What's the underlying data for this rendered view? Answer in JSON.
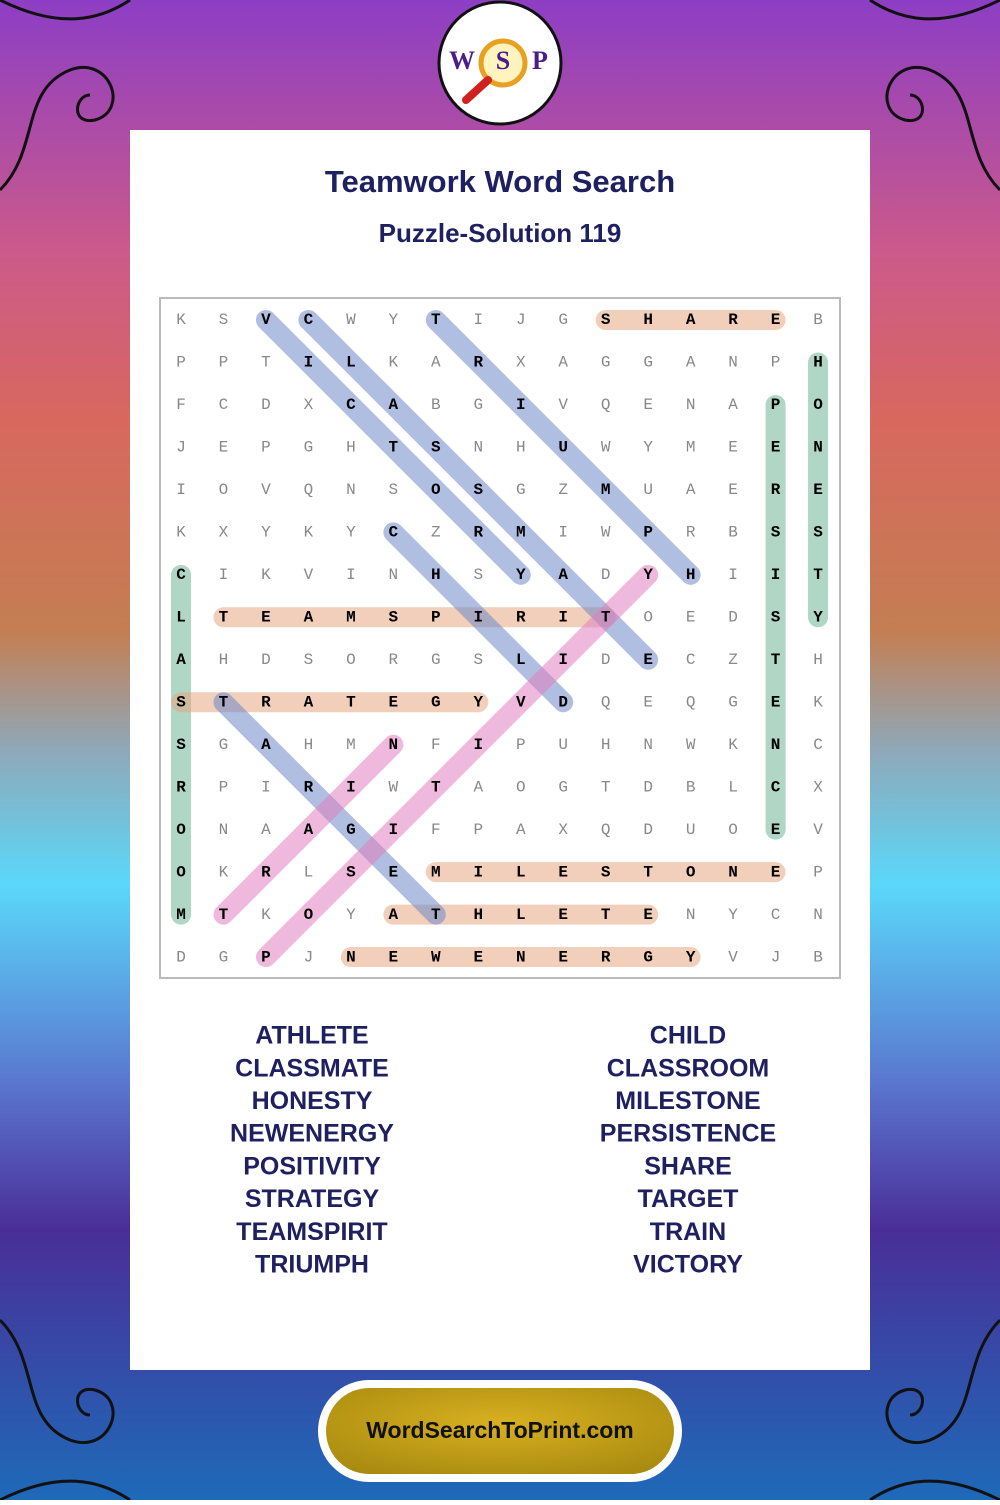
{
  "logo": {
    "letters": [
      "W",
      "S",
      "P"
    ]
  },
  "header": {
    "title": "Teamwork Word Search",
    "subtitle": "Puzzle-Solution 119"
  },
  "grid": {
    "rows": [
      [
        "K",
        "S",
        "V",
        "C",
        "W",
        "Y",
        "T",
        "I",
        "J",
        "G",
        "S",
        "H",
        "A",
        "R",
        "E",
        "B"
      ],
      [
        "P",
        "P",
        "T",
        "I",
        "L",
        "K",
        "A",
        "R",
        "X",
        "A",
        "G",
        "G",
        "A",
        "N",
        "P",
        "H"
      ],
      [
        "F",
        "C",
        "D",
        "X",
        "C",
        "A",
        "B",
        "G",
        "I",
        "V",
        "Q",
        "E",
        "N",
        "A",
        "P",
        "O"
      ],
      [
        "J",
        "E",
        "P",
        "G",
        "H",
        "T",
        "S",
        "N",
        "H",
        "U",
        "W",
        "Y",
        "M",
        "E",
        "E",
        "N"
      ],
      [
        "I",
        "O",
        "V",
        "Q",
        "N",
        "S",
        "O",
        "S",
        "G",
        "Z",
        "M",
        "U",
        "A",
        "E",
        "R",
        "E"
      ],
      [
        "K",
        "X",
        "Y",
        "K",
        "Y",
        "C",
        "Z",
        "R",
        "M",
        "I",
        "W",
        "P",
        "R",
        "B",
        "S",
        "S"
      ],
      [
        "C",
        "I",
        "K",
        "V",
        "I",
        "N",
        "H",
        "S",
        "Y",
        "A",
        "D",
        "Y",
        "H",
        "I",
        "I",
        "T"
      ],
      [
        "L",
        "T",
        "E",
        "A",
        "M",
        "S",
        "P",
        "I",
        "R",
        "I",
        "T",
        "O",
        "E",
        "D",
        "S",
        "Y"
      ],
      [
        "A",
        "H",
        "D",
        "S",
        "O",
        "R",
        "G",
        "S",
        "L",
        "I",
        "D",
        "E",
        "C",
        "Z",
        "T",
        "H"
      ],
      [
        "S",
        "T",
        "R",
        "A",
        "T",
        "E",
        "G",
        "Y",
        "V",
        "D",
        "Q",
        "E",
        "Q",
        "G",
        "E",
        "K"
      ],
      [
        "S",
        "G",
        "A",
        "H",
        "M",
        "N",
        "F",
        "I",
        "P",
        "U",
        "H",
        "N",
        "W",
        "K",
        "N",
        "C"
      ],
      [
        "R",
        "P",
        "I",
        "R",
        "I",
        "W",
        "T",
        "A",
        "O",
        "G",
        "T",
        "D",
        "B",
        "L",
        "C",
        "X"
      ],
      [
        "O",
        "N",
        "A",
        "A",
        "G",
        "I",
        "F",
        "P",
        "A",
        "X",
        "Q",
        "D",
        "U",
        "O",
        "E",
        "V"
      ],
      [
        "O",
        "K",
        "R",
        "L",
        "S",
        "E",
        "M",
        "I",
        "L",
        "E",
        "S",
        "T",
        "O",
        "N",
        "E",
        "P"
      ],
      [
        "M",
        "T",
        "K",
        "O",
        "Y",
        "A",
        "T",
        "H",
        "L",
        "E",
        "T",
        "E",
        "N",
        "Y",
        "C",
        "N"
      ],
      [
        "D",
        "G",
        "P",
        "J",
        "N",
        "E",
        "W",
        "E",
        "N",
        "E",
        "R",
        "G",
        "Y",
        "V",
        "J",
        "B"
      ]
    ],
    "solutions": [
      {
        "start": [
          0,
          10
        ],
        "end": [
          0,
          14
        ],
        "color": "#e6a882"
      },
      {
        "start": [
          1,
          15
        ],
        "end": [
          7,
          15
        ],
        "color": "#6fb597"
      },
      {
        "start": [
          2,
          14
        ],
        "end": [
          12,
          14
        ],
        "color": "#6fb597"
      },
      {
        "start": [
          6,
          0
        ],
        "end": [
          14,
          0
        ],
        "color": "#6fb597"
      },
      {
        "start": [
          7,
          1
        ],
        "end": [
          7,
          10
        ],
        "color": "#e6a882"
      },
      {
        "start": [
          9,
          0
        ],
        "end": [
          9,
          7
        ],
        "color": "#e6a882"
      },
      {
        "start": [
          13,
          6
        ],
        "end": [
          13,
          14
        ],
        "color": "#e6a882"
      },
      {
        "start": [
          14,
          5
        ],
        "end": [
          14,
          11
        ],
        "color": "#e6a882"
      },
      {
        "start": [
          15,
          4
        ],
        "end": [
          15,
          12
        ],
        "color": "#e6a882"
      },
      {
        "start": [
          0,
          2
        ],
        "end": [
          6,
          8
        ],
        "color": "#6e88c8"
      },
      {
        "start": [
          0,
          3
        ],
        "end": [
          8,
          11
        ],
        "color": "#6e88c8"
      },
      {
        "start": [
          0,
          6
        ],
        "end": [
          6,
          12
        ],
        "color": "#6e88c8"
      },
      {
        "start": [
          5,
          5
        ],
        "end": [
          9,
          9
        ],
        "color": "#6e88c8"
      },
      {
        "start": [
          9,
          1
        ],
        "end": [
          14,
          6
        ],
        "color": "#6e88c8"
      },
      {
        "start": [
          15,
          2
        ],
        "end": [
          6,
          11
        ],
        "color": "#e080c0"
      },
      {
        "start": [
          14,
          1
        ],
        "end": [
          10,
          5
        ],
        "color": "#e080c0"
      }
    ]
  },
  "word_list": {
    "left": [
      "ATHLETE",
      "CLASSMATE",
      "HONESTY",
      "NEWENERGY",
      "POSITIVITY",
      "STRATEGY",
      "TEAMSPIRIT",
      "TRIUMPH"
    ],
    "right": [
      "CHILD",
      "CLASSROOM",
      "MILESTONE",
      "PERSISTENCE",
      "SHARE",
      "TARGET",
      "TRAIN",
      "VICTORY"
    ]
  },
  "footer": {
    "site": "WordSearchToPrint.com"
  }
}
